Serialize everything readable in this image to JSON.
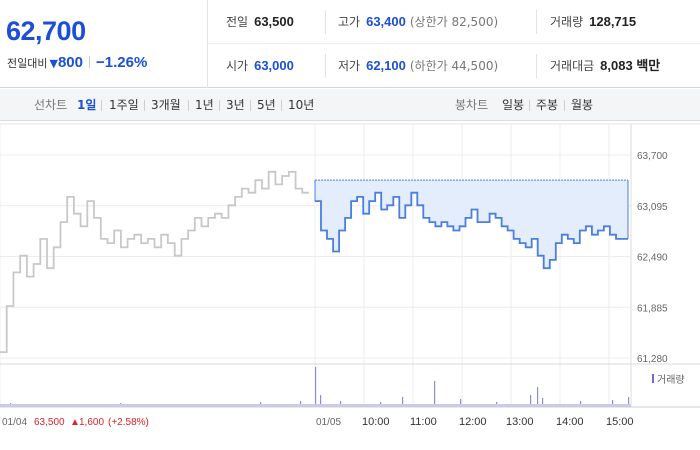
{
  "summary": {
    "price": "62,700",
    "change_label": "전일대비",
    "change_arrow": "▼",
    "change_value": "800",
    "change_rate": "−1.26%",
    "prev_close_label": "전일",
    "prev_close": "63,500",
    "high_label": "고가",
    "high": "63,400",
    "upper_limit": "(상한가 82,500)",
    "volume_label": "거래량",
    "volume": "128,715",
    "open_label": "시가",
    "open": "63,000",
    "low_label": "저가",
    "low": "62,100",
    "lower_limit": "(하한가 44,500)",
    "amount_label": "거래대금",
    "amount": "8,083 백만"
  },
  "period_bar": {
    "line_label": "선차트",
    "line_periods": [
      "1일",
      "1주일",
      "3개월",
      "1년",
      "3년",
      "5년",
      "10년"
    ],
    "active_period": "1일",
    "candle_label": "봉차트",
    "candle_periods": [
      "일봉",
      "주봉",
      "월봉"
    ]
  },
  "colors": {
    "accent": "#1a4fd6",
    "today_line": "#4a7ee0",
    "prev_line": "#c8c8c8",
    "fill": "#e4edfb",
    "rise": "#e0222a"
  },
  "chart_data": {
    "type": "line",
    "y_ticks": [
      "63,700",
      "63,095",
      "62,490",
      "61,885",
      "61,280"
    ],
    "ylim": [
      61280,
      63700
    ],
    "time_ticks": [
      "01/04",
      "01/05",
      "10:00",
      "11:00",
      "12:00",
      "13:00",
      "14:00",
      "15:00"
    ],
    "prev_day": {
      "date": "01/04",
      "close": "63,500",
      "change_arrow": "▲",
      "change_value": "1,600",
      "change_rate": "(+2.58%)",
      "values": [
        61350,
        61900,
        62300,
        62500,
        62250,
        62400,
        62700,
        62350,
        62600,
        62900,
        63200,
        63000,
        62850,
        63150,
        62950,
        62700,
        62650,
        62800,
        62600,
        62700,
        62750,
        62650,
        62700,
        62600,
        62750,
        62650,
        62500,
        62700,
        62800,
        62950,
        62850,
        62950,
        63000,
        62950,
        63100,
        63200,
        63300,
        63250,
        63400,
        63300,
        63500,
        63350,
        63450,
        63500,
        63300,
        63250
      ]
    },
    "today": {
      "date": "01/05",
      "reference": 63400,
      "values": [
        63150,
        62800,
        62700,
        62550,
        62800,
        62950,
        63150,
        63200,
        63000,
        63150,
        63250,
        63050,
        63100,
        63200,
        62950,
        63100,
        63250,
        63100,
        62950,
        62900,
        62850,
        62900,
        62850,
        62800,
        62850,
        62950,
        63050,
        62900,
        62900,
        63000,
        62950,
        62850,
        62800,
        62700,
        62650,
        62600,
        62700,
        62500,
        62350,
        62450,
        62650,
        62750,
        62700,
        62650,
        62800,
        62850,
        62750,
        62800,
        62850,
        62750,
        62700,
        62700
      ]
    },
    "volume_legend": "거래량"
  }
}
